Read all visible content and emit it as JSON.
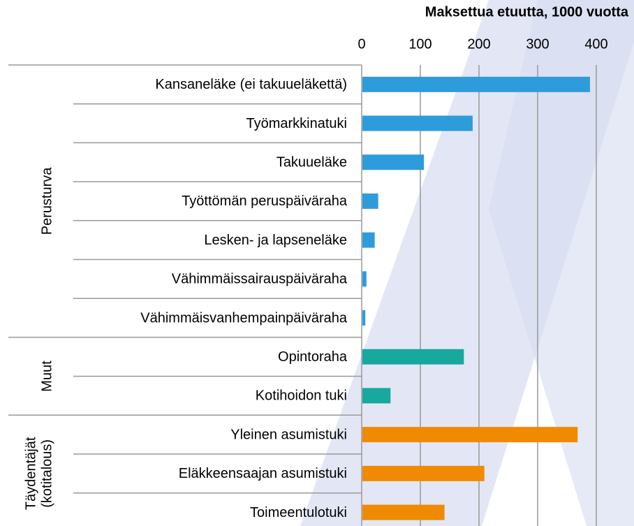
{
  "chart_data": {
    "type": "bar",
    "orientation": "horizontal",
    "title": "Maksettua etuutta, 1000 vuotta",
    "xlim": [
      0,
      400
    ],
    "xticks": [
      0,
      100,
      200,
      300,
      400
    ],
    "grid": true,
    "groups": [
      {
        "name": [
          "Perusturva"
        ],
        "color": "#2e9cdb",
        "categories": [
          "Kansaneläke (ei takuueläkettä)",
          "Työmarkkinatuki",
          "Takuueläke",
          "Työttömän peruspäiväraha",
          "Lesken- ja lapseneläke",
          "Vähimmäissairauspäiväraha",
          "Vähimmäisvanhempainpäiväraha"
        ],
        "values": [
          388,
          188,
          105,
          27,
          21,
          7,
          5
        ]
      },
      {
        "name": [
          "Muut"
        ],
        "color": "#17a89e",
        "categories": [
          "Opintoraha",
          "Kotihoidon tuki"
        ],
        "values": [
          173,
          48
        ]
      },
      {
        "name": [
          "Täydentäjät",
          "(kotitalous)"
        ],
        "color": "#f08a00",
        "categories": [
          "Yleinen asumistuki",
          "Eläkkeensaajan asumistuki",
          "Toimeentulotuki"
        ],
        "values": [
          367,
          208,
          140
        ]
      }
    ]
  }
}
